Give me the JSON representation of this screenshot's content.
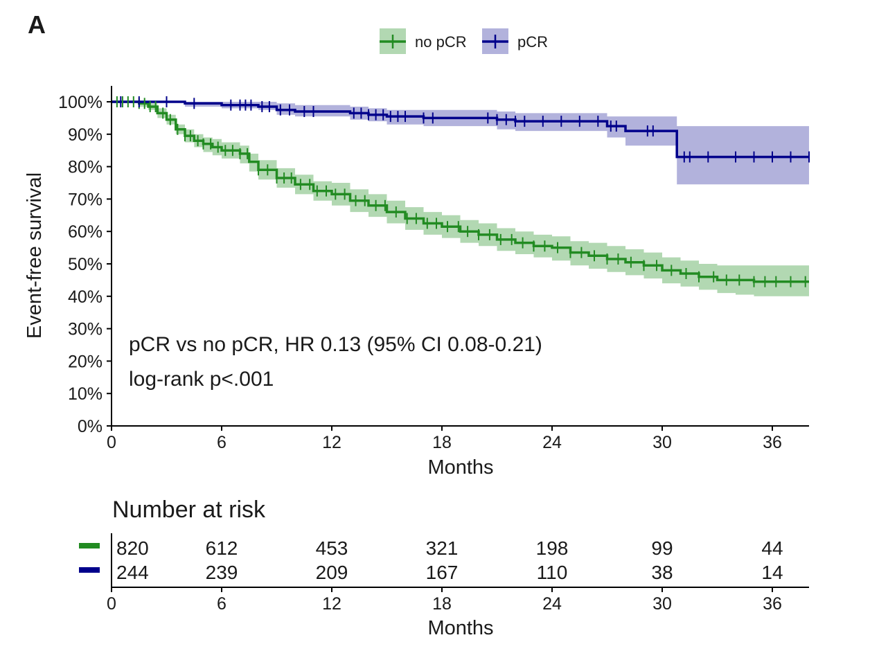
{
  "panel_label": "A",
  "legend": {
    "items": [
      {
        "label": "no pCR",
        "color": "#228b22",
        "band_color": "#b2d8b2"
      },
      {
        "label": "pCR",
        "color": "#00008b",
        "band_color": "#b2b2dc"
      }
    ]
  },
  "annotation": {
    "line1": "pCR vs no pCR, HR 0.13 (95% CI 0.08-0.21)",
    "line2": "log-rank p<.001"
  },
  "risk_table": {
    "title": "Number at risk",
    "xlabel": "Months",
    "times": [
      0,
      6,
      12,
      18,
      24,
      30,
      36
    ],
    "rows": [
      {
        "group": "no pCR",
        "color": "#228b22",
        "counts": [
          "820",
          "612",
          "453",
          "321",
          "198",
          "99",
          "44"
        ]
      },
      {
        "group": "pCR",
        "color": "#00008b",
        "counts": [
          "244",
          "239",
          "209",
          "167",
          "110",
          "38",
          "14"
        ]
      }
    ]
  },
  "chart_data": {
    "type": "line",
    "subtype": "kaplan-meier step",
    "title": "",
    "xlabel": "Months",
    "ylabel": "Event-free survival",
    "xlim": [
      0,
      38
    ],
    "ylim": [
      0,
      100
    ],
    "xticks": [
      0,
      6,
      12,
      18,
      24,
      30,
      36
    ],
    "yticks": [
      0,
      10,
      20,
      30,
      40,
      50,
      60,
      70,
      80,
      90,
      100
    ],
    "ytick_labels": [
      "0%",
      "10%",
      "20%",
      "30%",
      "40%",
      "50%",
      "60%",
      "70%",
      "80%",
      "90%",
      "100%"
    ],
    "legend_position": "top-center",
    "series": [
      {
        "name": "no pCR",
        "color": "#228b22",
        "band_color": "#b2d8b2",
        "x": [
          0,
          1.5,
          2,
          2.5,
          3,
          3.5,
          4,
          4.5,
          5,
          5.5,
          6,
          7,
          7.5,
          8,
          9,
          10,
          11,
          12,
          13,
          14,
          15,
          16,
          17,
          18,
          19,
          20,
          21,
          22,
          23,
          24,
          25,
          26,
          27,
          28,
          29,
          30,
          31,
          32,
          33,
          34,
          35,
          36,
          38
        ],
        "y": [
          100,
          99.5,
          98.5,
          96.5,
          94.5,
          91.5,
          89.5,
          88,
          87,
          86,
          85,
          84,
          81.5,
          79,
          76.5,
          74.5,
          72.5,
          71.5,
          69.5,
          68,
          66,
          64,
          62.5,
          61.5,
          60,
          59,
          57.5,
          56.5,
          55.5,
          55,
          53.5,
          52.5,
          51.5,
          50.5,
          49.5,
          48,
          47,
          46,
          45,
          45,
          44.5,
          44.5,
          44.5
        ],
        "lower": [
          100,
          98.5,
          97.5,
          95,
          93,
          90,
          87.5,
          86,
          84.5,
          83.5,
          82.5,
          81,
          78.5,
          76,
          73.5,
          71.5,
          69.5,
          68,
          66,
          64.5,
          62.5,
          60.5,
          59,
          58,
          56.5,
          55.5,
          54,
          53,
          52,
          51,
          49.5,
          48.5,
          47.5,
          46.5,
          45.5,
          44,
          43,
          42,
          41,
          40.5,
          40,
          40,
          40
        ],
        "upper": [
          100,
          100,
          99.5,
          98,
          96,
          93,
          91.5,
          90,
          89,
          88.5,
          87.5,
          86.5,
          84,
          82,
          79.5,
          77.5,
          75.5,
          75,
          73,
          71.5,
          69.5,
          67.5,
          66,
          65,
          63.5,
          62.5,
          61,
          60,
          59,
          58.5,
          57,
          56.5,
          55.5,
          54.5,
          53.5,
          52,
          51,
          50,
          49.5,
          49.5,
          49.5,
          49.5,
          49.5
        ],
        "censor_x": [
          0.3,
          0.6,
          0.9,
          1.2,
          1.5,
          1.8,
          2.1,
          2.4,
          2.8,
          3.2,
          3.6,
          4.0,
          4.3,
          4.7,
          5.0,
          5.4,
          5.8,
          6.2,
          6.6,
          7.0,
          7.4,
          8.0,
          8.5,
          9.0,
          9.4,
          9.8,
          10.3,
          10.8,
          11.2,
          11.7,
          12.2,
          12.7,
          13.3,
          13.8,
          14.4,
          14.9,
          15.5,
          16.1,
          16.6,
          17.2,
          17.7,
          18.3,
          18.9,
          19.4,
          20.0,
          20.6,
          21.2,
          21.8,
          22.4,
          23.0,
          23.6,
          24.3,
          25.0,
          25.6,
          26.3,
          27.0,
          27.6,
          28.3,
          29.0,
          29.7,
          30.5,
          31.3,
          32.0,
          32.8,
          33.5,
          34.2,
          35.0,
          35.6,
          36.2,
          37.0,
          37.8
        ]
      },
      {
        "name": "pCR",
        "color": "#00008b",
        "band_color": "#b2b2dc",
        "x": [
          0,
          4,
          6,
          8,
          9,
          10,
          13,
          14,
          15,
          17,
          21,
          22,
          23,
          27,
          28,
          30.8,
          38
        ],
        "y": [
          100,
          99.5,
          99,
          98.5,
          97.5,
          97,
          96.5,
          96,
          95.5,
          95,
          94.5,
          94,
          94,
          92.5,
          91,
          83,
          83
        ],
        "lower": [
          100,
          98.5,
          98,
          97.5,
          96,
          95.5,
          94.5,
          94,
          93,
          92.5,
          91.5,
          91,
          91,
          89,
          86.5,
          74.5,
          74.5
        ],
        "upper": [
          100,
          100,
          100,
          100,
          99.5,
          99,
          98.5,
          98,
          97.5,
          97.5,
          97,
          96.5,
          96.5,
          95.5,
          95.5,
          92.5,
          92.5
        ],
        "censor_x": [
          0.5,
          1.5,
          3.0,
          4.5,
          6.5,
          7.0,
          7.3,
          7.6,
          8.2,
          8.6,
          9.2,
          9.7,
          10.5,
          11.0,
          13.2,
          13.6,
          14.0,
          14.4,
          14.8,
          15.2,
          15.6,
          16.0,
          17.0,
          17.5,
          20.5,
          21.0,
          21.5,
          22.0,
          22.5,
          23.5,
          24.5,
          25.5,
          26.5,
          27.2,
          27.5,
          29.2,
          29.5,
          31.2,
          31.5,
          32.5,
          34.0,
          35.0,
          36.0,
          37.0,
          38.0
        ]
      }
    ]
  }
}
